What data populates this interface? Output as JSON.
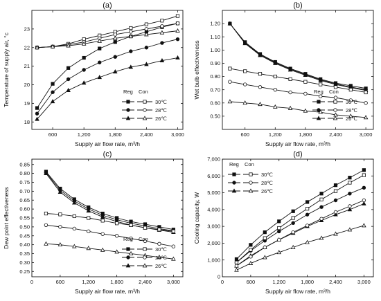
{
  "figure": {
    "legend_headers": {
      "reg": "Reg",
      "con": "Con"
    },
    "legend_labels": [
      "30℃",
      "28℃",
      "26℃"
    ]
  },
  "chart_data": [
    {
      "id": "a",
      "type": "line",
      "panel_label": "(a)",
      "xlabel": "Supply air flow rate, m³/h",
      "ylabel": "Temperature of supply air, °c",
      "x": [
        300,
        600,
        900,
        1200,
        1500,
        1800,
        2100,
        2400,
        2700,
        3000
      ],
      "xlim": [
        200,
        3100
      ],
      "ylim": [
        17.6,
        24
      ],
      "xticks": [
        600,
        1200,
        1800,
        2400,
        3000
      ],
      "xtick_labels": [
        "600",
        "1,200",
        "1,800",
        "2,400",
        "3,000"
      ],
      "yticks": [
        18,
        19,
        20,
        21,
        22,
        23
      ],
      "ytick_labels": [
        "18",
        "19",
        "20",
        "21",
        "22",
        "23"
      ],
      "legend_position": "bottom-right",
      "series": [
        {
          "name": "30℃",
          "group": "Reg",
          "marker": "square",
          "filled": true,
          "values": [
            18.75,
            20.05,
            20.9,
            21.45,
            21.95,
            22.3,
            22.6,
            22.85,
            23.1,
            23.3
          ]
        },
        {
          "name": "28℃",
          "group": "Reg",
          "marker": "circle",
          "filled": true,
          "values": [
            18.45,
            19.6,
            20.3,
            20.8,
            21.2,
            21.5,
            21.8,
            22.0,
            22.25,
            22.45
          ]
        },
        {
          "name": "26℃",
          "group": "Reg",
          "marker": "triangle",
          "filled": true,
          "values": [
            18.15,
            19.1,
            19.7,
            20.1,
            20.4,
            20.7,
            20.95,
            21.1,
            21.3,
            21.45
          ]
        },
        {
          "name": "30℃",
          "group": "Con",
          "marker": "square",
          "filled": false,
          "values": [
            22.0,
            22.05,
            22.2,
            22.45,
            22.65,
            22.85,
            23.05,
            23.25,
            23.45,
            23.7
          ]
        },
        {
          "name": "28℃",
          "group": "Con",
          "marker": "circle",
          "filled": false,
          "values": [
            22.0,
            22.05,
            22.15,
            22.3,
            22.5,
            22.7,
            22.85,
            23.0,
            23.15,
            23.3
          ]
        },
        {
          "name": "26℃",
          "group": "Con",
          "marker": "triangle",
          "filled": false,
          "values": [
            22.0,
            22.05,
            22.1,
            22.2,
            22.35,
            22.5,
            22.6,
            22.7,
            22.8,
            22.9
          ]
        }
      ]
    },
    {
      "id": "b",
      "type": "line",
      "panel_label": "(b)",
      "xlabel": "Supply air flow rate, m³/h",
      "ylabel": "Wet bulb effectiveness",
      "x": [
        300,
        600,
        900,
        1200,
        1500,
        1800,
        2100,
        2400,
        2700,
        3000
      ],
      "xlim": [
        150,
        3150
      ],
      "ylim": [
        0.4,
        1.3
      ],
      "xticks": [
        600,
        1200,
        1800,
        2400,
        3000
      ],
      "xtick_labels": [
        "600",
        "1,200",
        "1,800",
        "2,400",
        "3,000"
      ],
      "yticks": [
        0.5,
        0.6,
        0.7,
        0.8,
        0.9,
        1.0,
        1.1,
        1.2
      ],
      "ytick_labels": [
        "0.50",
        "0.60",
        "0.70",
        "0.80",
        "0.90",
        "1.00",
        "1.10",
        "1.20"
      ],
      "legend_position": "bottom-right",
      "series": [
        {
          "name": "30℃",
          "group": "Reg",
          "marker": "square",
          "filled": true,
          "values": [
            1.2,
            1.06,
            0.97,
            0.91,
            0.86,
            0.82,
            0.78,
            0.75,
            0.73,
            0.71
          ]
        },
        {
          "name": "28℃",
          "group": "Reg",
          "marker": "circle",
          "filled": true,
          "values": [
            1.2,
            1.055,
            0.965,
            0.905,
            0.855,
            0.815,
            0.775,
            0.745,
            0.72,
            0.7
          ]
        },
        {
          "name": "26℃",
          "group": "Reg",
          "marker": "triangle",
          "filled": true,
          "values": [
            1.2,
            1.05,
            0.96,
            0.9,
            0.85,
            0.81,
            0.77,
            0.74,
            0.715,
            0.695
          ]
        },
        {
          "name": "30℃",
          "group": "Con",
          "marker": "square",
          "filled": false,
          "values": [
            0.86,
            0.84,
            0.82,
            0.8,
            0.78,
            0.76,
            0.74,
            0.72,
            0.7,
            0.68
          ]
        },
        {
          "name": "28℃",
          "group": "Con",
          "marker": "circle",
          "filled": false,
          "values": [
            0.76,
            0.74,
            0.72,
            0.7,
            0.68,
            0.67,
            0.65,
            0.64,
            0.62,
            0.6
          ]
        },
        {
          "name": "26℃",
          "group": "Con",
          "marker": "triangle",
          "filled": false,
          "values": [
            0.61,
            0.6,
            0.59,
            0.57,
            0.56,
            0.54,
            0.53,
            0.51,
            0.5,
            0.49
          ]
        }
      ]
    },
    {
      "id": "c",
      "type": "line",
      "panel_label": "(c)",
      "xlabel": "Supply air flow rate, m³/h",
      "ylabel": "Dew point effectiveness",
      "x": [
        300,
        600,
        900,
        1200,
        1500,
        1800,
        2100,
        2400,
        2700,
        3000
      ],
      "xlim": [
        0,
        3200
      ],
      "ylim": [
        0.22,
        0.88
      ],
      "xticks": [
        0,
        600,
        1200,
        1800,
        2400,
        3000
      ],
      "xtick_labels": [
        "0",
        "600",
        "1,200",
        "1,800",
        "2,400",
        "3,000"
      ],
      "yticks": [
        0.25,
        0.3,
        0.35,
        0.4,
        0.45,
        0.5,
        0.55,
        0.6,
        0.65,
        0.7,
        0.75,
        0.8,
        0.85
      ],
      "ytick_labels": [
        "0.25",
        "0.30",
        "0.35",
        "0.40",
        "0.45",
        "0.50",
        "0.55",
        "0.60",
        "0.65",
        "0.70",
        "0.75",
        "0.80",
        "0.85"
      ],
      "legend_position": "bottom-right",
      "series": [
        {
          "name": "30℃",
          "group": "Reg",
          "marker": "square",
          "filled": true,
          "values": [
            0.81,
            0.715,
            0.655,
            0.61,
            0.575,
            0.55,
            0.53,
            0.515,
            0.5,
            0.485
          ]
        },
        {
          "name": "28℃",
          "group": "Reg",
          "marker": "circle",
          "filled": true,
          "values": [
            0.805,
            0.705,
            0.645,
            0.6,
            0.565,
            0.54,
            0.52,
            0.505,
            0.49,
            0.478
          ]
        },
        {
          "name": "26℃",
          "group": "Reg",
          "marker": "triangle",
          "filled": true,
          "values": [
            0.8,
            0.695,
            0.635,
            0.59,
            0.555,
            0.53,
            0.51,
            0.495,
            0.482,
            0.47
          ]
        },
        {
          "name": "30℃",
          "group": "Con",
          "marker": "square",
          "filled": false,
          "values": [
            0.575,
            0.57,
            0.56,
            0.55,
            0.535,
            0.52,
            0.51,
            0.495,
            0.485,
            0.475
          ]
        },
        {
          "name": "28℃",
          "group": "Con",
          "marker": "circle",
          "filled": false,
          "values": [
            0.51,
            0.5,
            0.49,
            0.475,
            0.46,
            0.45,
            0.435,
            0.42,
            0.405,
            0.39
          ]
        },
        {
          "name": "26℃",
          "group": "Con",
          "marker": "triangle",
          "filled": false,
          "values": [
            0.405,
            0.4,
            0.39,
            0.38,
            0.37,
            0.36,
            0.35,
            0.34,
            0.33,
            0.32
          ]
        }
      ]
    },
    {
      "id": "d",
      "type": "line",
      "panel_label": "(d)",
      "xlabel": "Supply air flow rate, m³/h",
      "ylabel": "Cooling capacity, W",
      "x": [
        300,
        600,
        900,
        1200,
        1500,
        1800,
        2100,
        2400,
        2700,
        3000
      ],
      "xlim": [
        0,
        3200
      ],
      "ylim": [
        0,
        7000
      ],
      "xticks": [
        0,
        600,
        1200,
        1800,
        2400,
        3000
      ],
      "xtick_labels": [
        "0",
        "600",
        "1,200",
        "1,800",
        "2,400",
        "3,000"
      ],
      "yticks": [
        0,
        1000,
        2000,
        3000,
        4000,
        5000,
        6000,
        7000
      ],
      "ytick_labels": [
        "0",
        "1,000",
        "2,000",
        "3,000",
        "4,000",
        "5,000",
        "6,000",
        "7,000"
      ],
      "legend_position": "top-left",
      "series": [
        {
          "name": "30℃",
          "group": "Reg",
          "marker": "square",
          "filled": true,
          "values": [
            1050,
            1900,
            2650,
            3300,
            3900,
            4450,
            4950,
            5450,
            5900,
            6350
          ]
        },
        {
          "name": "28℃",
          "group": "Reg",
          "marker": "circle",
          "filled": true,
          "values": [
            850,
            1550,
            2150,
            2700,
            3200,
            3700,
            4150,
            4550,
            4950,
            5300
          ]
        },
        {
          "name": "26℃",
          "group": "Reg",
          "marker": "triangle",
          "filled": true,
          "values": [
            650,
            1250,
            1750,
            2200,
            2600,
            3000,
            3350,
            3700,
            4000,
            4350
          ]
        },
        {
          "name": "30℃",
          "group": "Con",
          "marker": "square",
          "filled": false,
          "values": [
            850,
            1600,
            2300,
            2900,
            3500,
            4050,
            4600,
            5100,
            5600,
            6050
          ]
        },
        {
          "name": "28℃",
          "group": "Con",
          "marker": "circle",
          "filled": false,
          "values": [
            650,
            1200,
            1750,
            2200,
            2650,
            3050,
            3450,
            3850,
            4200,
            4550
          ]
        },
        {
          "name": "26℃",
          "group": "Con",
          "marker": "triangle",
          "filled": false,
          "values": [
            400,
            800,
            1150,
            1450,
            1750,
            2050,
            2300,
            2550,
            2800,
            3050
          ]
        }
      ]
    }
  ]
}
